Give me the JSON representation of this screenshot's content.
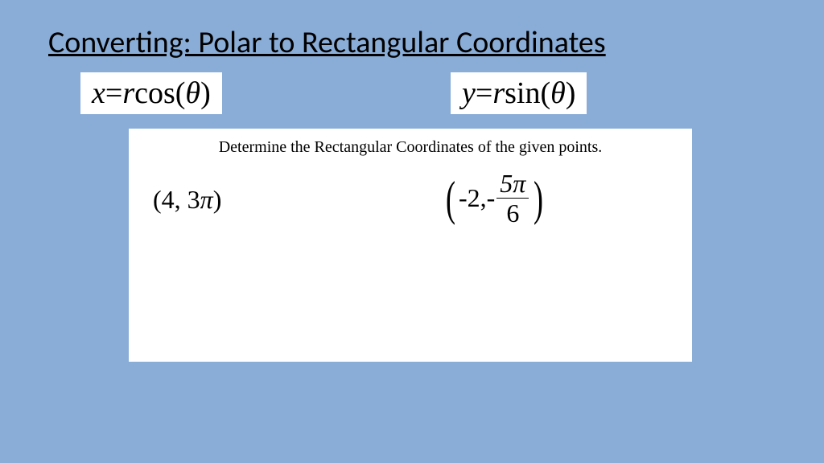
{
  "title": "Converting: Polar to Rectangular Coordinates",
  "formulas": {
    "x": {
      "lhs": "x",
      "eq": " = ",
      "rhs_r": "r",
      "rhs_fn": "cos",
      "rhs_arg": "θ"
    },
    "y": {
      "lhs": "y",
      "eq": " = ",
      "rhs_r": "r",
      "rhs_fn": "sin",
      "rhs_arg": "θ"
    }
  },
  "panel": {
    "instruction": "Determine the Rectangular Coordinates of the given points.",
    "points": {
      "p1": {
        "open": "(",
        "r": "4",
        "sep": ", ",
        "theta_coeff": "3",
        "theta_sym": "π",
        "close": ")"
      },
      "p2": {
        "open": "(",
        "r": "-2",
        "sep": ",  ",
        "neg": "-",
        "num_coeff": "5",
        "num_sym": "π",
        "den": "6",
        "close": ")"
      }
    }
  },
  "colors": {
    "background": "#8aadd8",
    "panel": "#ffffff",
    "text": "#000000"
  }
}
